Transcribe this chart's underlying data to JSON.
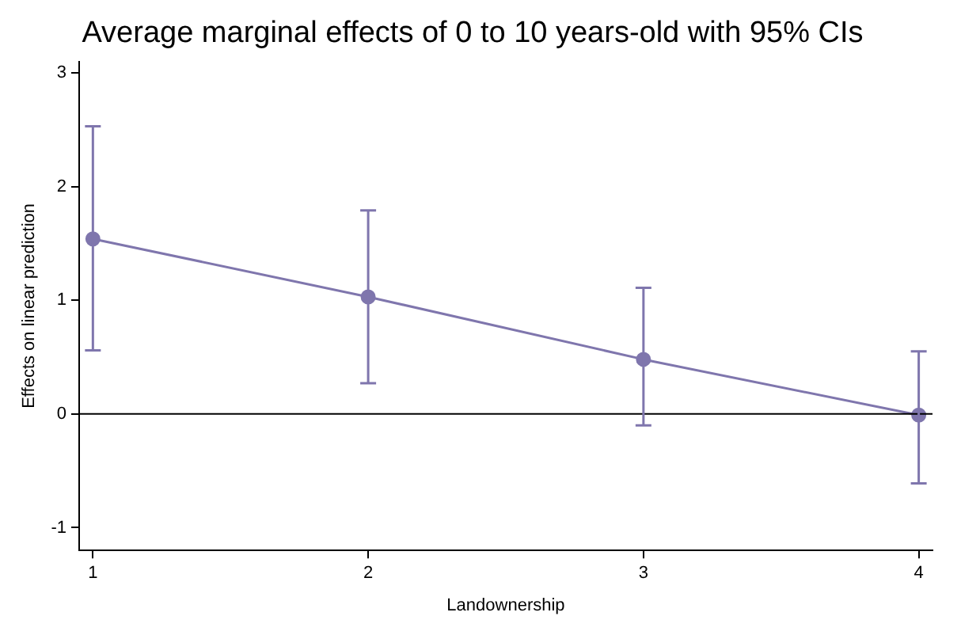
{
  "chart_data": {
    "type": "line",
    "title": "Average marginal effects of 0 to 10 years-old with 95% CIs",
    "xlabel": "Landownership",
    "ylabel": "Effects on linear prediction",
    "x": [
      1,
      2,
      3,
      4
    ],
    "series": [
      {
        "color": "#7f76ad",
        "values": [
          1.54,
          1.03,
          0.48,
          -0.01
        ],
        "errors": [
          [
            0.56,
            2.53
          ],
          [
            0.27,
            1.79
          ],
          [
            -0.1,
            1.11
          ],
          [
            -0.61,
            0.55
          ]
        ]
      }
    ],
    "xlim": [
      0.95,
      4.05
    ],
    "xticks": [
      1,
      2,
      3,
      4
    ],
    "ylim": [
      -1.2,
      3.1
    ],
    "yticks": [
      -1,
      0,
      1,
      2,
      3
    ],
    "ref_lines": [
      {
        "axis": "y",
        "value": 0,
        "color": "#000000"
      }
    ],
    "grid": false,
    "legend": false,
    "marker": "circle",
    "line_style": "solid"
  }
}
